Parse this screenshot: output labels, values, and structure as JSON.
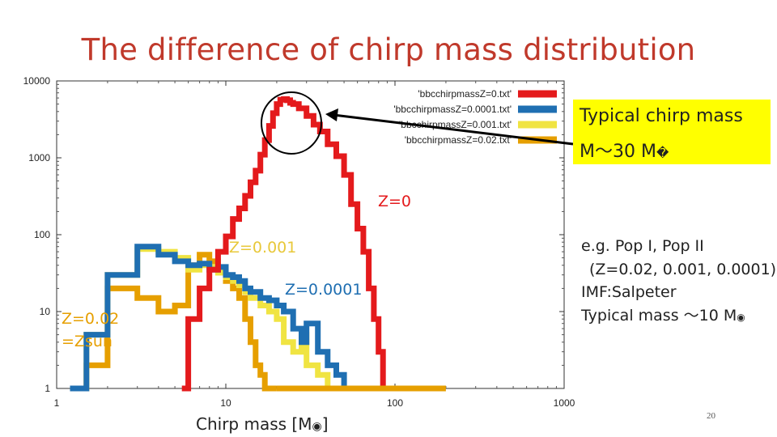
{
  "slide": {
    "title": "The difference of chirp mass distribution",
    "page_number": "20"
  },
  "callout": {
    "line1": "Typical chirp mass",
    "line2": "M～30 M",
    "sun_glyph": "�"
  },
  "notes": {
    "line1": "e.g. Pop I, Pop II",
    "line2": "(Z=0.02, 0.001, 0.0001)",
    "line3": "IMF:Salpeter",
    "line4": "Typical mass ～10 M",
    "sun_glyph": "◉"
  },
  "colors": {
    "z0": "#e41a1c",
    "z00001": "#1f6fb2",
    "z0001": "#f0e442",
    "z002": "#e69f00",
    "title": "#c0392b",
    "callout_bg": "#ffff00"
  },
  "chart_data": {
    "type": "line",
    "xlabel": "Chirp mass [M",
    "xlabel_suffix": "]",
    "xscale": "log",
    "yscale": "log",
    "xlim": [
      1,
      1000
    ],
    "ylim": [
      1,
      10000
    ],
    "x_ticks": [
      "1",
      "10",
      "100",
      "1000"
    ],
    "y_ticks": [
      "1",
      "10",
      "100",
      "1000",
      "10000"
    ],
    "grid": false,
    "legend_position": "top-right",
    "annotations": [
      "Z=0",
      "Z=0.001",
      "Z=0.0001",
      "Z=0.02",
      "=Zsun"
    ],
    "series": [
      {
        "name": "'bbcchirpmassZ=0.txt'",
        "color": "#e41a1c",
        "x": [
          5.5,
          6,
          7,
          8,
          9,
          10,
          11,
          12,
          13,
          14,
          15,
          16,
          17,
          18,
          19,
          20,
          21,
          22,
          23,
          24,
          25,
          27,
          30,
          33,
          36,
          40,
          45,
          50,
          55,
          60,
          65,
          70,
          75,
          80,
          85,
          90
        ],
        "y": [
          1,
          8,
          20,
          35,
          60,
          95,
          160,
          220,
          320,
          480,
          680,
          1100,
          1700,
          2600,
          3800,
          5000,
          5700,
          5800,
          5600,
          5200,
          5000,
          4400,
          3500,
          2700,
          2200,
          1500,
          1050,
          600,
          250,
          120,
          60,
          20,
          8,
          3,
          1,
          1
        ]
      },
      {
        "name": "'bbcchirpmassZ=0.0001.txt'",
        "color": "#1f6fb2",
        "x": [
          1.2,
          1.5,
          2,
          3,
          4,
          5,
          6,
          7,
          8,
          9,
          10,
          11,
          12,
          13,
          14,
          16,
          18,
          20,
          22,
          25,
          28,
          30,
          35,
          40,
          45,
          50,
          60
        ],
        "y": [
          1,
          5,
          30,
          70,
          55,
          45,
          40,
          42,
          35,
          38,
          30,
          28,
          25,
          20,
          18,
          15,
          14,
          12,
          10,
          6,
          4,
          7,
          3,
          2,
          1.5,
          1,
          1
        ]
      },
      {
        "name": "'bbcchirpmassZ=0.001.txt'",
        "color": "#f0e442",
        "x": [
          1.2,
          1.5,
          2,
          3,
          4,
          5,
          6,
          7,
          8,
          9,
          10,
          11,
          12,
          13,
          14,
          16,
          18,
          20,
          22,
          25,
          28,
          30,
          35,
          40
        ],
        "y": [
          1,
          5,
          30,
          65,
          60,
          50,
          35,
          40,
          38,
          32,
          28,
          25,
          22,
          18,
          15,
          12,
          10,
          8,
          4,
          3,
          5,
          2,
          1.5,
          1
        ]
      },
      {
        "name": "'bbcchirpmassZ=0.02.txt'",
        "color": "#e69f00",
        "x": [
          1.2,
          1.5,
          2,
          3,
          4,
          5,
          6,
          7,
          8,
          9,
          10,
          11,
          12,
          13,
          14,
          15,
          16,
          17,
          18,
          20
        ],
        "y": [
          1,
          2,
          20,
          15,
          10,
          12,
          40,
          55,
          45,
          35,
          25,
          20,
          15,
          8,
          4,
          2,
          1.5,
          1,
          1,
          1
        ]
      }
    ]
  }
}
